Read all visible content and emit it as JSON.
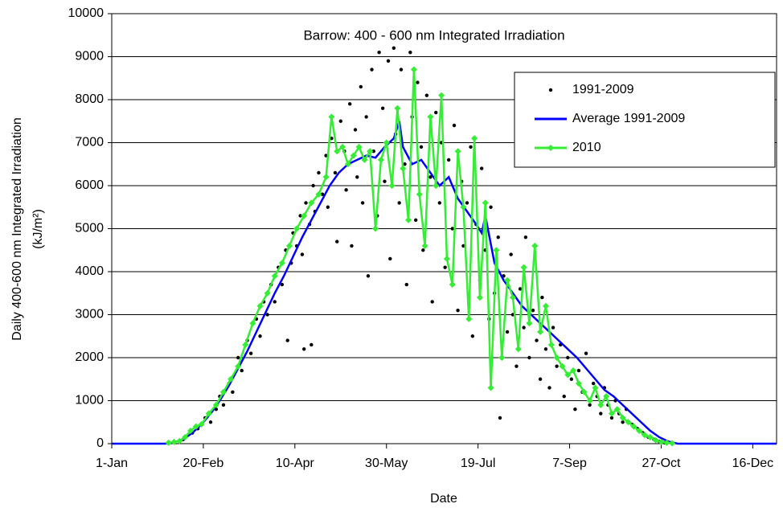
{
  "chart_data": {
    "type": "scatter",
    "title": "Barrow: 400 - 600 nm Integrated Irradiation",
    "x_label": "Date",
    "y_label": "Daily 400-600 nm Integrated Irradiation",
    "y_label_unit": "(kJ/m²)",
    "xlim": [
      1,
      364
    ],
    "ylim": [
      0,
      10000
    ],
    "xticks": [
      {
        "value": 1,
        "label": "1-Jan"
      },
      {
        "value": 51,
        "label": "20-Feb"
      },
      {
        "value": 101,
        "label": "10-Apr"
      },
      {
        "value": 151,
        "label": "30-May"
      },
      {
        "value": 201,
        "label": "19-Jul"
      },
      {
        "value": 251,
        "label": "7-Sep"
      },
      {
        "value": 301,
        "label": "27-Oct"
      },
      {
        "value": 351,
        "label": "16-Dec"
      }
    ],
    "yticks": [
      0,
      1000,
      2000,
      3000,
      4000,
      5000,
      6000,
      7000,
      8000,
      9000,
      10000
    ],
    "grid": true,
    "legend": "upper right",
    "series": [
      {
        "name": "1991-2009",
        "style": "points",
        "color": "#000000",
        "x": [
          40,
          45,
          48,
          52,
          55,
          58,
          60,
          62,
          65,
          67,
          70,
          72,
          75,
          77,
          80,
          82,
          84,
          86,
          88,
          90,
          92,
          94,
          96,
          97,
          99,
          100,
          102,
          104,
          105,
          107,
          109,
          111,
          112,
          114,
          116,
          118,
          119,
          121,
          123,
          124,
          126,
          128,
          129,
          131,
          132,
          134,
          135,
          137,
          138,
          140,
          141,
          143,
          144,
          146,
          147,
          149,
          150,
          152,
          153,
          155,
          156,
          158,
          159,
          161,
          162,
          164,
          165,
          167,
          168,
          170,
          171,
          173,
          175,
          176,
          178,
          180,
          181,
          183,
          185,
          187,
          188,
          190,
          192,
          193,
          195,
          197,
          198,
          200,
          202,
          203,
          205,
          207,
          208,
          210,
          212,
          213,
          215,
          217,
          219,
          220,
          222,
          224,
          226,
          227,
          229,
          231,
          233,
          235,
          236,
          238,
          240,
          242,
          244,
          246,
          248,
          250,
          252,
          254,
          256,
          258,
          260,
          262,
          264,
          266,
          268,
          270,
          272,
          274,
          276,
          278,
          280,
          282,
          285,
          288,
          291,
          294,
          297,
          300,
          303,
          110,
          106
        ],
        "values": [
          100,
          250,
          350,
          600,
          500,
          800,
          1100,
          900,
          1400,
          1200,
          2000,
          1700,
          2400,
          2100,
          2900,
          2500,
          3300,
          3000,
          3700,
          3300,
          4100,
          3700,
          4500,
          2400,
          4200,
          4900,
          4600,
          5300,
          4400,
          5600,
          5100,
          6000,
          5400,
          6300,
          5800,
          6700,
          5500,
          7100,
          6300,
          4700,
          7500,
          6800,
          5900,
          7900,
          4600,
          7300,
          6200,
          8300,
          5600,
          7600,
          3900,
          8700,
          6800,
          5300,
          9100,
          7800,
          6100,
          8900,
          4300,
          9200,
          7200,
          5600,
          8700,
          6500,
          3700,
          9100,
          7600,
          5200,
          8400,
          6900,
          4500,
          8100,
          6200,
          3300,
          7700,
          5600,
          7000,
          4100,
          6600,
          5000,
          7400,
          3100,
          6100,
          4600,
          5600,
          6900,
          2500,
          5100,
          3800,
          6400,
          4500,
          2900,
          5500,
          3500,
          4800,
          600,
          3900,
          2600,
          4400,
          3000,
          1800,
          3600,
          2700,
          4800,
          2000,
          3100,
          2400,
          1500,
          3400,
          2200,
          1300,
          2700,
          1800,
          2300,
          1100,
          2000,
          1500,
          800,
          1700,
          1200,
          2100,
          900,
          1400,
          1100,
          700,
          1300,
          900,
          600,
          1000,
          700,
          500,
          800,
          450,
          350,
          250,
          150,
          100,
          50,
          20,
          2300,
          2200
        ]
      },
      {
        "name": "Average 1991-2009",
        "style": "line",
        "color": "#0000ff",
        "x": [
          1,
          30,
          35,
          40,
          45,
          50,
          55,
          60,
          65,
          70,
          75,
          80,
          85,
          90,
          95,
          100,
          105,
          110,
          115,
          120,
          125,
          130,
          135,
          140,
          145,
          150,
          155,
          158,
          160,
          165,
          170,
          175,
          180,
          185,
          190,
          195,
          200,
          203,
          205,
          210,
          215,
          220,
          225,
          230,
          235,
          240,
          245,
          250,
          255,
          260,
          265,
          270,
          275,
          280,
          285,
          290,
          295,
          300,
          305,
          310,
          364
        ],
        "values": [
          0,
          0,
          30,
          100,
          250,
          450,
          700,
          1000,
          1350,
          1750,
          2150,
          2600,
          3050,
          3500,
          3900,
          4350,
          4800,
          5200,
          5600,
          6000,
          6300,
          6500,
          6600,
          6700,
          6650,
          6900,
          7100,
          7500,
          6900,
          6500,
          6600,
          6300,
          6000,
          6200,
          5700,
          5400,
          5100,
          4900,
          5300,
          4200,
          3800,
          3500,
          3200,
          3000,
          2800,
          2600,
          2400,
          2200,
          2000,
          1750,
          1500,
          1250,
          1100,
          900,
          700,
          500,
          300,
          150,
          50,
          0,
          0
        ]
      },
      {
        "name": "2010",
        "style": "line-markers",
        "color": "#33ee33",
        "x": [
          32,
          35,
          38,
          41,
          44,
          47,
          50,
          54,
          58,
          62,
          66,
          70,
          74,
          78,
          82,
          86,
          90,
          94,
          98,
          102,
          106,
          110,
          114,
          118,
          121,
          124,
          127,
          130,
          133,
          136,
          139,
          142,
          145,
          148,
          151,
          154,
          157,
          160,
          163,
          166,
          169,
          172,
          175,
          178,
          181,
          184,
          187,
          190,
          193,
          196,
          199,
          202,
          205,
          208,
          211,
          214,
          217,
          220,
          223,
          226,
          229,
          232,
          235,
          238,
          241,
          244,
          247,
          250,
          253,
          256,
          259,
          262,
          265,
          268,
          271,
          274,
          277,
          280,
          283,
          286,
          289,
          292,
          295,
          298,
          301,
          304,
          307
        ],
        "values": [
          20,
          40,
          60,
          150,
          300,
          400,
          450,
          700,
          900,
          1200,
          1500,
          1800,
          2300,
          2800,
          3200,
          3500,
          3900,
          4200,
          4600,
          5000,
          5300,
          5600,
          5800,
          6200,
          7600,
          6800,
          6900,
          6500,
          6700,
          6900,
          6600,
          6800,
          5000,
          6600,
          7000,
          6000,
          7800,
          6400,
          5200,
          8700,
          5800,
          4600,
          7600,
          6000,
          8100,
          4300,
          3700,
          6800,
          5500,
          2900,
          7100,
          3400,
          5600,
          1300,
          4500,
          2000,
          3800,
          3400,
          2200,
          4100,
          2800,
          4600,
          2600,
          3200,
          2300,
          2000,
          1800,
          1600,
          1700,
          1400,
          1200,
          1000,
          1300,
          900,
          1100,
          700,
          800,
          600,
          500,
          400,
          300,
          200,
          150,
          80,
          40,
          20,
          10
        ]
      }
    ]
  }
}
